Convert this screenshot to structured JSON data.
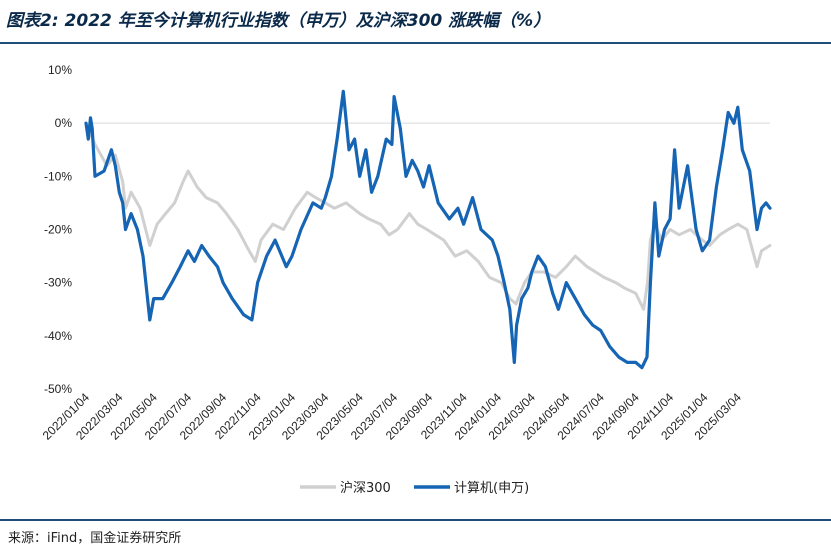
{
  "figure": {
    "title": "图表2:  2022 年至今计算机行业指数（申万）及沪深300 涨跌幅（%）",
    "source": "来源：iFind，国金证券研究所"
  },
  "chart_data": {
    "type": "line",
    "y_ticks": [
      "10%",
      "0%",
      "-10%",
      "-20%",
      "-30%",
      "-40%",
      "-50%"
    ],
    "y_tick_values": [
      10,
      0,
      -10,
      -20,
      -30,
      -40,
      -50
    ],
    "ylim": [
      -50,
      10
    ],
    "x_ticks": [
      "2022/01/04",
      "2022/03/04",
      "2022/05/04",
      "2022/07/04",
      "2022/09/04",
      "2022/11/04",
      "2023/01/04",
      "2023/03/04",
      "2023/05/04",
      "2023/07/04",
      "2023/09/04",
      "2023/11/04",
      "2024/01/04",
      "2024/03/04",
      "2024/05/04",
      "2024/07/04",
      "2024/09/04",
      "2024/11/04",
      "2025/01/04",
      "2025/03/04"
    ],
    "xlim": [
      "2022/01/04",
      "2025/04/30"
    ],
    "grid": false,
    "legend_position": "bottom",
    "series": [
      {
        "name": "沪深300",
        "color": "#d0d0d0",
        "points": [
          [
            "2022-01-04",
            0
          ],
          [
            "2022-01-20",
            -4
          ],
          [
            "2022-02-10",
            -8
          ],
          [
            "2022-02-25",
            -6
          ],
          [
            "2022-03-10",
            -11
          ],
          [
            "2022-03-15",
            -16
          ],
          [
            "2022-03-25",
            -13
          ],
          [
            "2022-04-10",
            -16
          ],
          [
            "2022-04-27",
            -23
          ],
          [
            "2022-05-10",
            -19
          ],
          [
            "2022-05-25",
            -17
          ],
          [
            "2022-06-10",
            -15
          ],
          [
            "2022-06-25",
            -11
          ],
          [
            "2022-07-04",
            -9
          ],
          [
            "2022-07-20",
            -12
          ],
          [
            "2022-08-05",
            -14
          ],
          [
            "2022-08-25",
            -15
          ],
          [
            "2022-09-10",
            -17
          ],
          [
            "2022-09-30",
            -20
          ],
          [
            "2022-10-20",
            -24
          ],
          [
            "2022-10-31",
            -26
          ],
          [
            "2022-11-10",
            -22
          ],
          [
            "2022-12-01",
            -19
          ],
          [
            "2022-12-20",
            -20
          ],
          [
            "2023-01-10",
            -16
          ],
          [
            "2023-01-31",
            -13
          ],
          [
            "2023-02-15",
            -14
          ],
          [
            "2023-03-04",
            -15
          ],
          [
            "2023-03-20",
            -16
          ],
          [
            "2023-04-10",
            -15
          ],
          [
            "2023-05-04",
            -17
          ],
          [
            "2023-05-20",
            -18
          ],
          [
            "2023-06-10",
            -19
          ],
          [
            "2023-06-25",
            -21
          ],
          [
            "2023-07-10",
            -20
          ],
          [
            "2023-07-31",
            -17
          ],
          [
            "2023-08-15",
            -19
          ],
          [
            "2023-08-31",
            -20
          ],
          [
            "2023-09-15",
            -21
          ],
          [
            "2023-09-30",
            -22
          ],
          [
            "2023-10-20",
            -25
          ],
          [
            "2023-11-10",
            -24
          ],
          [
            "2023-11-30",
            -26
          ],
          [
            "2023-12-20",
            -29
          ],
          [
            "2024-01-10",
            -30
          ],
          [
            "2024-01-25",
            -33
          ],
          [
            "2024-02-05",
            -34
          ],
          [
            "2024-02-20",
            -30
          ],
          [
            "2024-03-04",
            -28
          ],
          [
            "2024-03-25",
            -28
          ],
          [
            "2024-04-15",
            -29
          ],
          [
            "2024-05-04",
            -27
          ],
          [
            "2024-05-20",
            -25
          ],
          [
            "2024-06-10",
            -27
          ],
          [
            "2024-06-25",
            -28
          ],
          [
            "2024-07-10",
            -29
          ],
          [
            "2024-07-31",
            -30
          ],
          [
            "2024-08-15",
            -31
          ],
          [
            "2024-09-04",
            -32
          ],
          [
            "2024-09-18",
            -35
          ],
          [
            "2024-09-25",
            -30
          ],
          [
            "2024-09-30",
            -22
          ],
          [
            "2024-10-08",
            -19
          ],
          [
            "2024-10-20",
            -22
          ],
          [
            "2024-11-04",
            -20
          ],
          [
            "2024-11-20",
            -21
          ],
          [
            "2024-12-10",
            -20
          ],
          [
            "2024-12-31",
            -22
          ],
          [
            "2025-01-13",
            -23
          ],
          [
            "2025-01-31",
            -21
          ],
          [
            "2025-02-15",
            -20
          ],
          [
            "2025-03-04",
            -19
          ],
          [
            "2025-03-20",
            -20
          ],
          [
            "2025-04-07",
            -27
          ],
          [
            "2025-04-15",
            -24
          ],
          [
            "2025-04-30",
            -23
          ]
        ]
      },
      {
        "name": "计算机(申万)",
        "color": "#1565b4",
        "points": [
          [
            "2022-01-04",
            0
          ],
          [
            "2022-01-08",
            -3
          ],
          [
            "2022-01-12",
            1
          ],
          [
            "2022-01-15",
            -1
          ],
          [
            "2022-01-20",
            -10
          ],
          [
            "2022-02-05",
            -9
          ],
          [
            "2022-02-18",
            -5
          ],
          [
            "2022-02-25",
            -8
          ],
          [
            "2022-03-04",
            -13
          ],
          [
            "2022-03-10",
            -15
          ],
          [
            "2022-03-15",
            -20
          ],
          [
            "2022-03-25",
            -17
          ],
          [
            "2022-04-05",
            -20
          ],
          [
            "2022-04-15",
            -25
          ],
          [
            "2022-04-27",
            -37
          ],
          [
            "2022-05-04",
            -33
          ],
          [
            "2022-05-20",
            -33
          ],
          [
            "2022-06-05",
            -30
          ],
          [
            "2022-06-20",
            -27
          ],
          [
            "2022-07-04",
            -24
          ],
          [
            "2022-07-15",
            -26
          ],
          [
            "2022-07-28",
            -23
          ],
          [
            "2022-08-10",
            -25
          ],
          [
            "2022-08-25",
            -27
          ],
          [
            "2022-09-04",
            -30
          ],
          [
            "2022-09-20",
            -33
          ],
          [
            "2022-10-10",
            -36
          ],
          [
            "2022-10-25",
            -37
          ],
          [
            "2022-11-04",
            -30
          ],
          [
            "2022-11-20",
            -25
          ],
          [
            "2022-12-05",
            -22
          ],
          [
            "2022-12-25",
            -27
          ],
          [
            "2023-01-04",
            -25
          ],
          [
            "2023-01-20",
            -20
          ],
          [
            "2023-02-10",
            -15
          ],
          [
            "2023-02-25",
            -16
          ],
          [
            "2023-03-04",
            -14
          ],
          [
            "2023-03-15",
            -10
          ],
          [
            "2023-03-25",
            -3
          ],
          [
            "2023-04-05",
            6
          ],
          [
            "2023-04-15",
            -5
          ],
          [
            "2023-04-25",
            -3
          ],
          [
            "2023-05-04",
            -10
          ],
          [
            "2023-05-15",
            -5
          ],
          [
            "2023-05-25",
            -13
          ],
          [
            "2023-06-05",
            -10
          ],
          [
            "2023-06-20",
            -3
          ],
          [
            "2023-06-30",
            -4
          ],
          [
            "2023-07-04",
            5
          ],
          [
            "2023-07-15",
            -1
          ],
          [
            "2023-07-25",
            -10
          ],
          [
            "2023-08-05",
            -7
          ],
          [
            "2023-08-15",
            -9
          ],
          [
            "2023-08-25",
            -12
          ],
          [
            "2023-09-04",
            -8
          ],
          [
            "2023-09-20",
            -15
          ],
          [
            "2023-10-10",
            -18
          ],
          [
            "2023-10-25",
            -16
          ],
          [
            "2023-11-04",
            -19
          ],
          [
            "2023-11-20",
            -14
          ],
          [
            "2023-12-05",
            -20
          ],
          [
            "2023-12-25",
            -22
          ],
          [
            "2024-01-04",
            -25
          ],
          [
            "2024-01-15",
            -30
          ],
          [
            "2024-01-25",
            -35
          ],
          [
            "2024-02-02",
            -45
          ],
          [
            "2024-02-06",
            -38
          ],
          [
            "2024-02-15",
            -33
          ],
          [
            "2024-02-26",
            -31
          ],
          [
            "2024-03-04",
            -28
          ],
          [
            "2024-03-15",
            -25
          ],
          [
            "2024-03-28",
            -27
          ],
          [
            "2024-04-10",
            -32
          ],
          [
            "2024-04-20",
            -35
          ],
          [
            "2024-05-04",
            -30
          ],
          [
            "2024-05-20",
            -33
          ],
          [
            "2024-06-05",
            -36
          ],
          [
            "2024-06-20",
            -38
          ],
          [
            "2024-07-04",
            -39
          ],
          [
            "2024-07-20",
            -42
          ],
          [
            "2024-08-05",
            -44
          ],
          [
            "2024-08-20",
            -45
          ],
          [
            "2024-09-04",
            -45
          ],
          [
            "2024-09-15",
            -46
          ],
          [
            "2024-09-24",
            -44
          ],
          [
            "2024-09-30",
            -30
          ],
          [
            "2024-10-08",
            -15
          ],
          [
            "2024-10-15",
            -25
          ],
          [
            "2024-10-25",
            -20
          ],
          [
            "2024-11-04",
            -18
          ],
          [
            "2024-11-12",
            -5
          ],
          [
            "2024-11-20",
            -16
          ],
          [
            "2024-12-05",
            -8
          ],
          [
            "2024-12-20",
            -20
          ],
          [
            "2024-12-31",
            -24
          ],
          [
            "2025-01-13",
            -22
          ],
          [
            "2025-01-25",
            -12
          ],
          [
            "2025-02-05",
            -5
          ],
          [
            "2025-02-15",
            2
          ],
          [
            "2025-02-25",
            0
          ],
          [
            "2025-03-04",
            3
          ],
          [
            "2025-03-12",
            -5
          ],
          [
            "2025-03-25",
            -9
          ],
          [
            "2025-04-07",
            -20
          ],
          [
            "2025-04-15",
            -16
          ],
          [
            "2025-04-23",
            -15
          ],
          [
            "2025-04-30",
            -16
          ]
        ]
      }
    ]
  }
}
